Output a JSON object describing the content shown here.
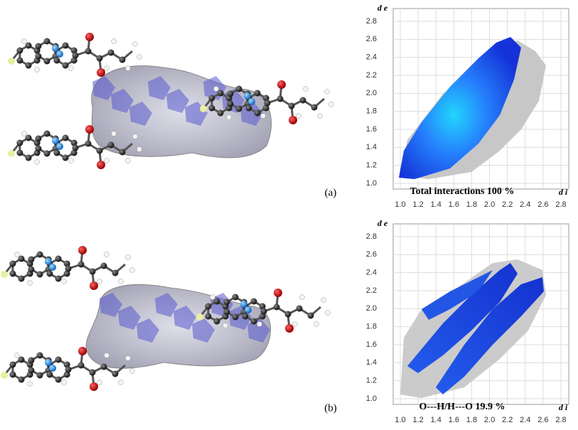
{
  "panels": [
    {
      "label": "(a)",
      "plot": {
        "ylabel": "d e",
        "xlabel": "d i",
        "caption": "Total interactions 100 %",
        "xticks": [
          {
            "value": 1,
            "label": "1.0"
          },
          1.2,
          1.4,
          1.6,
          1.8,
          {
            "value": 2,
            "label": "2.0"
          },
          2.2,
          2.4,
          2.6,
          2.8
        ],
        "yticks": [
          {
            "value": 1,
            "label": "1.0"
          },
          1.2,
          1.4,
          1.6,
          1.8,
          {
            "value": 2,
            "label": "2.0"
          },
          2.2,
          2.4,
          2.6,
          2.8
        ]
      }
    },
    {
      "label": "(b)",
      "plot": {
        "ylabel": "d e",
        "xlabel": "d i",
        "caption": "O---H/H---O 19.9 %",
        "xticks": [
          {
            "value": 1,
            "label": "1.0"
          },
          1.2,
          1.4,
          1.6,
          1.8,
          {
            "value": 2,
            "label": "2.0"
          },
          2.2,
          2.4,
          2.6,
          2.8
        ],
        "yticks": [
          {
            "value": 1,
            "label": "1.0"
          },
          1.2,
          1.4,
          1.6,
          1.8,
          {
            "value": 2,
            "label": "2.0"
          },
          2.2,
          2.4,
          2.6,
          2.8
        ]
      }
    }
  ]
}
